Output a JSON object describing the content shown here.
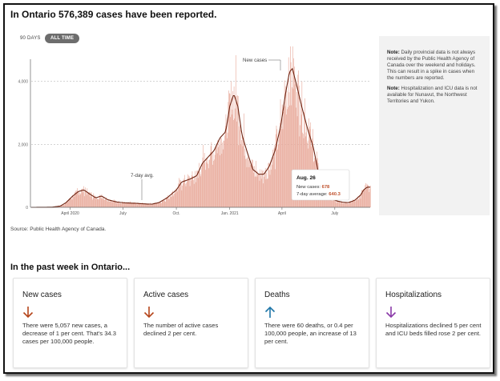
{
  "header": {
    "title": "In Ontario 576,389 cases have been reported."
  },
  "toggles": [
    {
      "label": "90 DAYS",
      "active": false
    },
    {
      "label": "ALL TIME",
      "active": true
    }
  ],
  "chart_data": {
    "type": "bar",
    "bar_color": "#e8a99a",
    "line_color": "#6e2412",
    "y_ticks": [
      "4,000",
      "2,000",
      "0"
    ],
    "ylim": [
      0,
      4700
    ],
    "x_ticks": [
      "April 2020",
      "July",
      "Oct.",
      "Jan. 2021",
      "April",
      "July"
    ],
    "new_cases_label": "New cases",
    "avg_label": "7-day avg.",
    "tooltip": {
      "date": "Aug. 26",
      "new_cases_label": "New cases:",
      "new_cases_value": "678",
      "avg_label": "7-day average:",
      "avg_value": "640.3"
    },
    "trend_points": [
      [
        "2020-01-25",
        0
      ],
      [
        "2020-03-01",
        5
      ],
      [
        "2020-03-15",
        40
      ],
      [
        "2020-03-25",
        150
      ],
      [
        "2020-04-05",
        350
      ],
      [
        "2020-04-15",
        500
      ],
      [
        "2020-04-25",
        550
      ],
      [
        "2020-05-05",
        420
      ],
      [
        "2020-05-15",
        300
      ],
      [
        "2020-05-25",
        360
      ],
      [
        "2020-06-05",
        240
      ],
      [
        "2020-06-20",
        170
      ],
      [
        "2020-07-05",
        140
      ],
      [
        "2020-07-20",
        130
      ],
      [
        "2020-08-05",
        110
      ],
      [
        "2020-08-20",
        100
      ],
      [
        "2020-09-01",
        150
      ],
      [
        "2020-09-15",
        300
      ],
      [
        "2020-10-01",
        550
      ],
      [
        "2020-10-10",
        800
      ],
      [
        "2020-10-25",
        900
      ],
      [
        "2020-11-05",
        1000
      ],
      [
        "2020-11-15",
        1400
      ],
      [
        "2020-11-25",
        1600
      ],
      [
        "2020-12-05",
        1800
      ],
      [
        "2020-12-15",
        2200
      ],
      [
        "2020-12-25",
        2400
      ],
      [
        "2021-01-01",
        3200
      ],
      [
        "2021-01-08",
        3600
      ],
      [
        "2021-01-15",
        3200
      ],
      [
        "2021-01-22",
        2300
      ],
      [
        "2021-02-01",
        1700
      ],
      [
        "2021-02-10",
        1200
      ],
      [
        "2021-02-20",
        1050
      ],
      [
        "2021-03-01",
        1050
      ],
      [
        "2021-03-10",
        1300
      ],
      [
        "2021-03-20",
        1800
      ],
      [
        "2021-03-30",
        2600
      ],
      [
        "2021-04-07",
        3600
      ],
      [
        "2021-04-14",
        4300
      ],
      [
        "2021-04-19",
        4400
      ],
      [
        "2021-04-26",
        3900
      ],
      [
        "2021-05-05",
        3200
      ],
      [
        "2021-05-15",
        2500
      ],
      [
        "2021-05-25",
        1900
      ],
      [
        "2021-06-05",
        900
      ],
      [
        "2021-06-15",
        500
      ],
      [
        "2021-06-25",
        280
      ],
      [
        "2021-07-05",
        200
      ],
      [
        "2021-07-15",
        160
      ],
      [
        "2021-07-25",
        150
      ],
      [
        "2021-08-05",
        230
      ],
      [
        "2021-08-15",
        400
      ],
      [
        "2021-08-20",
        560
      ],
      [
        "2021-08-26",
        640
      ]
    ]
  },
  "notes": [
    {
      "label": "Note:",
      "text": "Daily provincial data is not always received by the Public Health Agency of Canada over the weekend and holidays. This can result in a spike in cases when the numbers are reported."
    },
    {
      "label": "Note:",
      "text": "Hospitalization and ICU data is not available for Nunavut, the Northwest Territories and Yukon."
    }
  ],
  "source": "Source: Public Health Agency of Canada.",
  "section_title": "In the past week in Ontario...",
  "cards": [
    {
      "title": "New cases",
      "icon": "arrow-down-icon",
      "color": "#b5461c",
      "text": "There were 5,057 new cases, a decrease of 1 per cent. That's 34.3 cases per 100,000 people."
    },
    {
      "title": "Active cases",
      "icon": "arrow-down-icon",
      "color": "#b5461c",
      "text": "The number of active cases declined 2 per cent."
    },
    {
      "title": "Deaths",
      "icon": "arrow-up-icon",
      "color": "#1f76a8",
      "text": "There were 60 deaths, or 0.4 per 100,000 people, an increase of 13 per cent."
    },
    {
      "title": "Hospitalizations",
      "icon": "arrow-down-icon",
      "color": "#8a3aa8",
      "text": "Hospitalizations declined 5 per cent and ICU beds filled rose 2 per cent."
    }
  ]
}
